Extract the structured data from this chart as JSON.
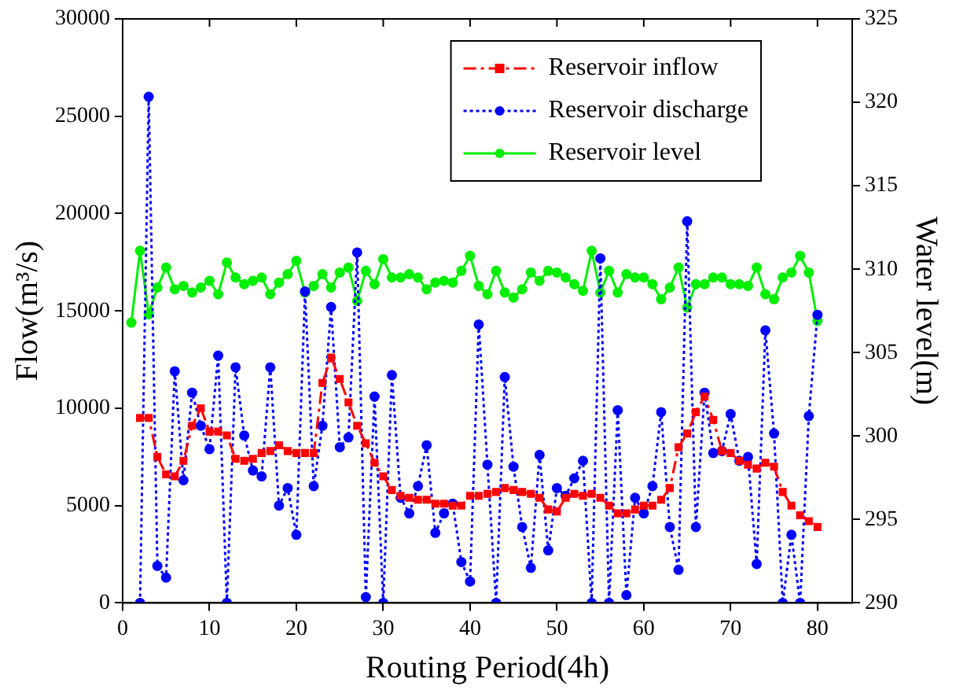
{
  "chart_data": {
    "type": "line",
    "xlabel": "Routing Period(4h)",
    "ylabel": "Flow(m³/s)",
    "y2label": "Water level(m)",
    "x": [
      1,
      2,
      3,
      4,
      5,
      6,
      7,
      8,
      9,
      10,
      11,
      12,
      13,
      14,
      15,
      16,
      17,
      18,
      19,
      20,
      21,
      22,
      23,
      24,
      25,
      26,
      27,
      28,
      29,
      30,
      31,
      32,
      33,
      34,
      35,
      36,
      37,
      38,
      39,
      40,
      41,
      42,
      43,
      44,
      45,
      46,
      47,
      48,
      49,
      50,
      51,
      52,
      53,
      54,
      55,
      56,
      57,
      58,
      59,
      60,
      61,
      62,
      63,
      64,
      65,
      66,
      67,
      68,
      69,
      70,
      71,
      72,
      73,
      74,
      75,
      76,
      77,
      78,
      79,
      80
    ],
    "xlim": [
      0,
      84
    ],
    "xticks": [
      0,
      10,
      20,
      30,
      40,
      50,
      60,
      70,
      80
    ],
    "ylim": [
      0,
      30000
    ],
    "yticks": [
      0,
      5000,
      10000,
      15000,
      20000,
      25000,
      30000
    ],
    "y2lim": [
      290,
      325
    ],
    "y2ticks": [
      290,
      295,
      300,
      305,
      310,
      315,
      320,
      325
    ],
    "grid": false,
    "legend": "top right",
    "series": [
      {
        "name": "Reservoir inflow",
        "color": "#ff0000",
        "marker": "square",
        "line_style": "dashdot",
        "values": [
          null,
          9500,
          9500,
          7500,
          6600,
          6500,
          7300,
          9100,
          10000,
          8800,
          8800,
          8600,
          7400,
          7300,
          7400,
          7700,
          7800,
          8100,
          7800,
          7700,
          7700,
          7700,
          11300,
          12600,
          11500,
          10300,
          9100,
          8200,
          7200,
          6500,
          5800,
          5500,
          5400,
          5300,
          5300,
          5100,
          5100,
          5000,
          5000,
          5500,
          5500,
          5600,
          5700,
          5900,
          5800,
          5700,
          5600,
          5400,
          4800,
          4700,
          5400,
          5600,
          5500,
          5600,
          5400,
          5000,
          4600,
          4600,
          4800,
          5000,
          5000,
          5300,
          5900,
          8000,
          8700,
          9800,
          10600,
          9400,
          7800,
          7700,
          7300,
          7100,
          6900,
          7200,
          7000,
          5700,
          5000,
          4500,
          4200,
          3900
        ]
      },
      {
        "name": "Reservoir discharge",
        "color": "#0000ff",
        "marker": "circle",
        "line_style": "dotted",
        "values": [
          null,
          0,
          26000,
          1900,
          1300,
          11900,
          6300,
          10800,
          9100,
          7900,
          12700,
          0,
          12100,
          8600,
          6800,
          6500,
          12100,
          5000,
          5900,
          3500,
          16000,
          6000,
          9100,
          15200,
          8000,
          8500,
          18000,
          300,
          10600,
          0,
          11700,
          5400,
          4600,
          6000,
          8100,
          3600,
          4600,
          5100,
          2100,
          1100,
          14300,
          7100,
          0,
          11600,
          7000,
          3900,
          1800,
          7600,
          2700,
          5900,
          5500,
          6400,
          7300,
          0,
          17700,
          0,
          9900,
          400,
          5400,
          4600,
          6000,
          9800,
          3900,
          1700,
          19600,
          3900,
          10800,
          7700,
          7800,
          9700,
          7300,
          7500,
          2000,
          14000,
          8700,
          0,
          3500,
          0,
          9600,
          14800
        ]
      },
      {
        "name": "Reservoir level",
        "color": "#00ee00",
        "marker": "circle",
        "line_style": "solid",
        "axis": "y2",
        "values": [
          306.8,
          311.1,
          307.3,
          308.9,
          310.1,
          308.8,
          309.0,
          308.6,
          308.9,
          309.3,
          308.5,
          310.4,
          309.5,
          309.1,
          309.3,
          309.5,
          308.5,
          309.2,
          309.7,
          310.5,
          308.6,
          309.0,
          309.7,
          308.9,
          309.8,
          310.1,
          308.1,
          309.9,
          309.1,
          310.6,
          309.5,
          309.5,
          309.7,
          309.5,
          308.8,
          309.2,
          309.3,
          309.2,
          309.9,
          310.8,
          309.0,
          308.5,
          309.9,
          308.6,
          308.3,
          308.8,
          309.8,
          309.3,
          309.9,
          309.8,
          309.5,
          309.1,
          308.7,
          311.1,
          308.6,
          309.9,
          308.6,
          309.7,
          309.5,
          309.5,
          309.1,
          308.2,
          308.9,
          310.1,
          307.7,
          309.1,
          309.1,
          309.5,
          309.5,
          309.1,
          309.1,
          309.0,
          310.1,
          308.5,
          308.2,
          309.5,
          309.8,
          310.8,
          309.8,
          306.9
        ]
      }
    ]
  }
}
